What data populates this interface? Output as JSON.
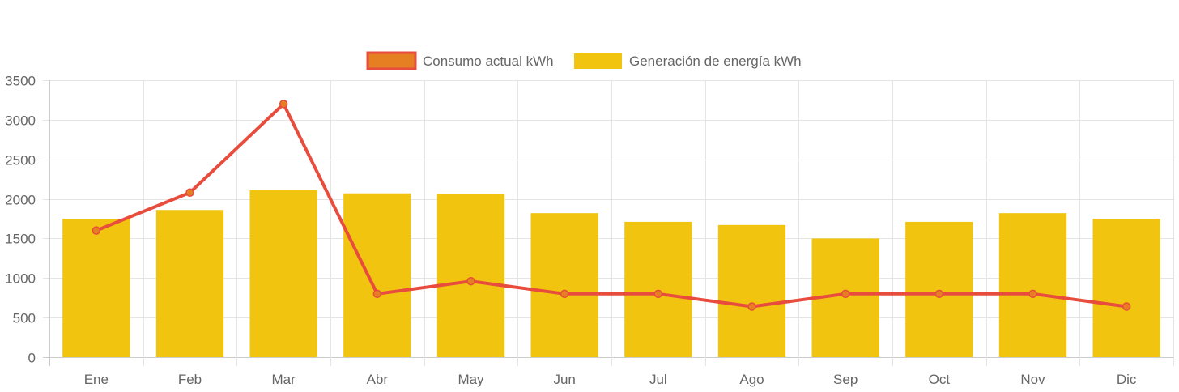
{
  "colors": {
    "consumo_line": "#e74c3c",
    "consumo_fill": "#e67e22",
    "generacion_bar": "#f1c40f",
    "grid": "#e5e5e5",
    "axis": "#cccccc",
    "text": "#666666"
  },
  "legend": {
    "consumo_label": "Consumo actual kWh",
    "generacion_label": "Generación de energía kWh"
  },
  "chart_data": {
    "type": "bar",
    "categories": [
      "Ene",
      "Feb",
      "Mar",
      "Abr",
      "May",
      "Jun",
      "Jul",
      "Ago",
      "Sep",
      "Oct",
      "Nov",
      "Dic"
    ],
    "series": [
      {
        "name": "Consumo actual kWh",
        "type": "line",
        "values": [
          1600,
          2080,
          3200,
          800,
          960,
          800,
          800,
          640,
          800,
          800,
          800,
          640
        ]
      },
      {
        "name": "Generación de energía kWh",
        "type": "bar",
        "values": [
          1750,
          1860,
          2110,
          2070,
          2060,
          1820,
          1710,
          1670,
          1500,
          1710,
          1820,
          1750
        ]
      }
    ],
    "y_ticks": [
      "0",
      "500",
      "1000",
      "1500",
      "2000",
      "2500",
      "3000",
      "3500"
    ],
    "ylim": [
      0,
      3500
    ],
    "grid": true,
    "legend_position": "top-center"
  }
}
